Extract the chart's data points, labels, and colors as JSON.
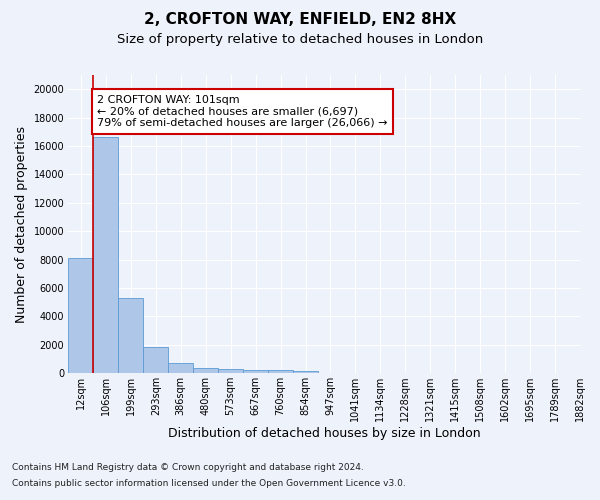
{
  "title_line1": "2, CROFTON WAY, ENFIELD, EN2 8HX",
  "title_line2": "Size of property relative to detached houses in London",
  "xlabel": "Distribution of detached houses by size in London",
  "ylabel": "Number of detached properties",
  "bar_color": "#aec6e8",
  "bar_edge_color": "#5b9bd5",
  "background_color": "#eef2fb",
  "grid_color": "#ffffff",
  "bins": [
    "12sqm",
    "106sqm",
    "199sqm",
    "293sqm",
    "386sqm",
    "480sqm",
    "573sqm",
    "667sqm",
    "760sqm",
    "854sqm",
    "947sqm",
    "1041sqm",
    "1134sqm",
    "1228sqm",
    "1321sqm",
    "1415sqm",
    "1508sqm",
    "1602sqm",
    "1695sqm",
    "1789sqm",
    "1882sqm"
  ],
  "values": [
    8100,
    16600,
    5300,
    1850,
    700,
    350,
    270,
    210,
    200,
    170,
    0,
    0,
    0,
    0,
    0,
    0,
    0,
    0,
    0,
    0
  ],
  "ylim": [
    0,
    21000
  ],
  "yticks": [
    0,
    2000,
    4000,
    6000,
    8000,
    10000,
    12000,
    14000,
    16000,
    18000,
    20000
  ],
  "vline_x_idx": 1,
  "annotation_text": "2 CROFTON WAY: 101sqm\n← 20% of detached houses are smaller (6,697)\n79% of semi-detached houses are larger (26,066) →",
  "annotation_box_color": "#ffffff",
  "annotation_border_color": "#cc0000",
  "footnote_line1": "Contains HM Land Registry data © Crown copyright and database right 2024.",
  "footnote_line2": "Contains public sector information licensed under the Open Government Licence v3.0.",
  "vline_color": "#cc0000",
  "title_fontsize": 11,
  "subtitle_fontsize": 9.5,
  "tick_fontsize": 7,
  "label_fontsize": 9,
  "annotation_fontsize": 8,
  "footnote_fontsize": 6.5
}
